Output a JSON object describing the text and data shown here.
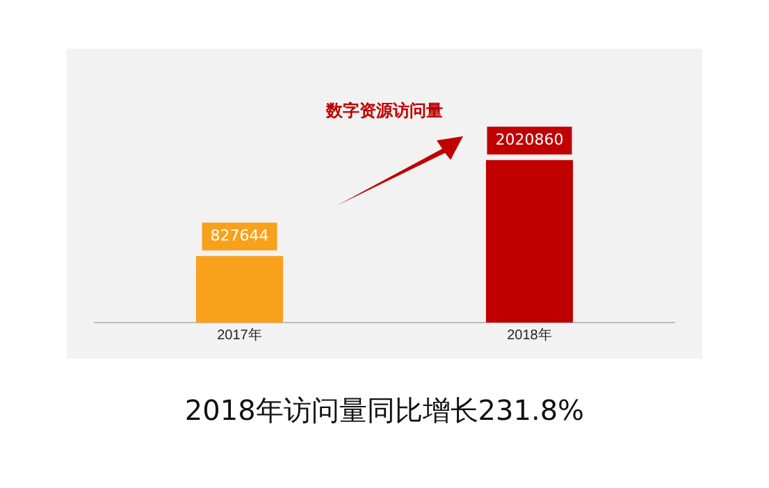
{
  "chart_data": {
    "type": "bar",
    "title": "数字资源访问量",
    "categories": [
      "2017年",
      "2018年"
    ],
    "values": [
      827644,
      2020860
    ],
    "colors": [
      "#f9a11b",
      "#c00000"
    ],
    "data_labels": true,
    "grid": false,
    "legend": false,
    "annotations": [
      "2018年访问量同比增长231.8%"
    ]
  }
}
